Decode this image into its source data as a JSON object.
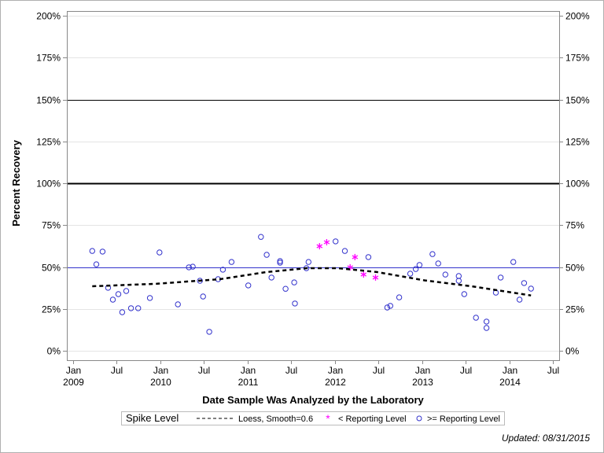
{
  "chart_data": {
    "type": "scatter",
    "xlabel": "Date Sample Was Analyzed by the Laboratory",
    "ylabel": "Percent Recovery",
    "ylim": [
      0,
      200
    ],
    "xlim": [
      "2009-01-01",
      "2014-07-01"
    ],
    "y_ticks": [
      "0%",
      "25%",
      "50%",
      "75%",
      "100%",
      "125%",
      "150%",
      "175%",
      "200%"
    ],
    "x_ticks": [
      {
        "month": "Jan",
        "year": "2009",
        "date": "2009-01-01"
      },
      {
        "month": "Jul",
        "year": "",
        "date": "2009-07-01"
      },
      {
        "month": "Jan",
        "year": "2010",
        "date": "2010-01-01"
      },
      {
        "month": "Jul",
        "year": "",
        "date": "2010-07-01"
      },
      {
        "month": "Jan",
        "year": "2011",
        "date": "2011-01-01"
      },
      {
        "month": "Jul",
        "year": "",
        "date": "2011-07-01"
      },
      {
        "month": "Jan",
        "year": "2012",
        "date": "2012-01-01"
      },
      {
        "month": "Jul",
        "year": "",
        "date": "2012-07-01"
      },
      {
        "month": "Jan",
        "year": "2013",
        "date": "2013-01-01"
      },
      {
        "month": "Jul",
        "year": "",
        "date": "2013-07-01"
      },
      {
        "month": "Jan",
        "year": "2014",
        "date": "2014-01-01"
      },
      {
        "month": "Jul",
        "year": "",
        "date": "2014-07-01"
      }
    ],
    "grid": true,
    "reference_lines": [
      {
        "y": 100,
        "color": "#000000",
        "style": "thick"
      },
      {
        "y": 150,
        "color": "#000000",
        "style": "thin"
      },
      {
        "y": 50,
        "color": "#3333cc",
        "style": "thin"
      }
    ],
    "series": [
      {
        "name": ">= Reporting Level",
        "marker": "circle",
        "color": "#3333cc",
        "points": [
          [
            "2009-03-22",
            59.6
          ],
          [
            "2009-04-08",
            51.6
          ],
          [
            "2009-05-04",
            59.2
          ],
          [
            "2009-05-27",
            37.6
          ],
          [
            "2009-06-16",
            30.5
          ],
          [
            "2009-07-09",
            33.8
          ],
          [
            "2009-07-25",
            23.0
          ],
          [
            "2009-08-11",
            35.7
          ],
          [
            "2009-08-31",
            25.4
          ],
          [
            "2009-09-30",
            25.4
          ],
          [
            "2009-11-18",
            31.5
          ],
          [
            "2009-12-28",
            58.7
          ],
          [
            "2010-03-15",
            27.7
          ],
          [
            "2010-04-30",
            49.8
          ],
          [
            "2010-05-16",
            50.2
          ],
          [
            "2010-06-15",
            41.8
          ],
          [
            "2010-06-28",
            32.4
          ],
          [
            "2010-07-24",
            11.3
          ],
          [
            "2010-08-30",
            42.7
          ],
          [
            "2010-09-19",
            48.4
          ],
          [
            "2010-10-25",
            53.0
          ],
          [
            "2011-01-03",
            39.0
          ],
          [
            "2011-02-25",
            68.0
          ],
          [
            "2011-03-21",
            57.3
          ],
          [
            "2011-04-10",
            43.7
          ],
          [
            "2011-05-16",
            53.5
          ],
          [
            "2011-05-16",
            52.6
          ],
          [
            "2011-06-08",
            37.0
          ],
          [
            "2011-07-14",
            40.8
          ],
          [
            "2011-07-17",
            28.2
          ],
          [
            "2011-09-03",
            49.3
          ],
          [
            "2011-09-12",
            53.0
          ],
          [
            "2012-01-03",
            65.3
          ],
          [
            "2012-02-11",
            59.6
          ],
          [
            "2012-05-19",
            55.9
          ],
          [
            "2012-08-06",
            25.8
          ],
          [
            "2012-08-19",
            26.8
          ],
          [
            "2012-09-25",
            31.9
          ],
          [
            "2012-11-10",
            46.0
          ],
          [
            "2012-12-03",
            48.8
          ],
          [
            "2012-12-19",
            51.2
          ],
          [
            "2013-02-11",
            57.7
          ],
          [
            "2013-03-07",
            52.1
          ],
          [
            "2013-04-06",
            45.5
          ],
          [
            "2013-06-01",
            44.6
          ],
          [
            "2013-06-01",
            41.8
          ],
          [
            "2013-06-24",
            33.8
          ],
          [
            "2013-08-12",
            19.7
          ],
          [
            "2013-09-25",
            17.4
          ],
          [
            "2013-09-25",
            13.6
          ],
          [
            "2013-11-03",
            34.7
          ],
          [
            "2013-11-23",
            43.7
          ],
          [
            "2014-01-15",
            53.0
          ],
          [
            "2014-02-10",
            30.5
          ],
          [
            "2014-03-01",
            40.4
          ],
          [
            "2014-03-30",
            37.1
          ]
        ]
      },
      {
        "name": "< Reporting Level",
        "marker": "asterisk",
        "color": "#ff00ff",
        "points": [
          [
            "2011-10-28",
            62.4
          ],
          [
            "2011-11-27",
            64.8
          ],
          [
            "2012-03-04",
            49.8
          ],
          [
            "2012-03-24",
            55.9
          ],
          [
            "2012-04-29",
            45.5
          ],
          [
            "2012-06-18",
            43.7
          ]
        ]
      },
      {
        "name": "Loess, Smooth=0.6",
        "marker": "dashed-line",
        "color": "#000000",
        "points": [
          [
            "2009-03-22",
            38.5
          ],
          [
            "2009-12-17",
            40.0
          ],
          [
            "2010-09-06",
            42.7
          ],
          [
            "2011-03-21",
            47.0
          ],
          [
            "2011-09-03",
            49.3
          ],
          [
            "2012-01-12",
            49.3
          ],
          [
            "2012-06-24",
            47.0
          ],
          [
            "2013-01-09",
            42.0
          ],
          [
            "2013-07-24",
            38.5
          ],
          [
            "2014-03-30",
            33.0
          ]
        ]
      }
    ],
    "legend": {
      "title": "Spike Level",
      "placement": "bottom",
      "entries": [
        "Loess, Smooth=0.6",
        "< Reporting Level",
        ">= Reporting Level"
      ]
    }
  },
  "footer": {
    "updated": "Updated: 08/31/2015"
  }
}
